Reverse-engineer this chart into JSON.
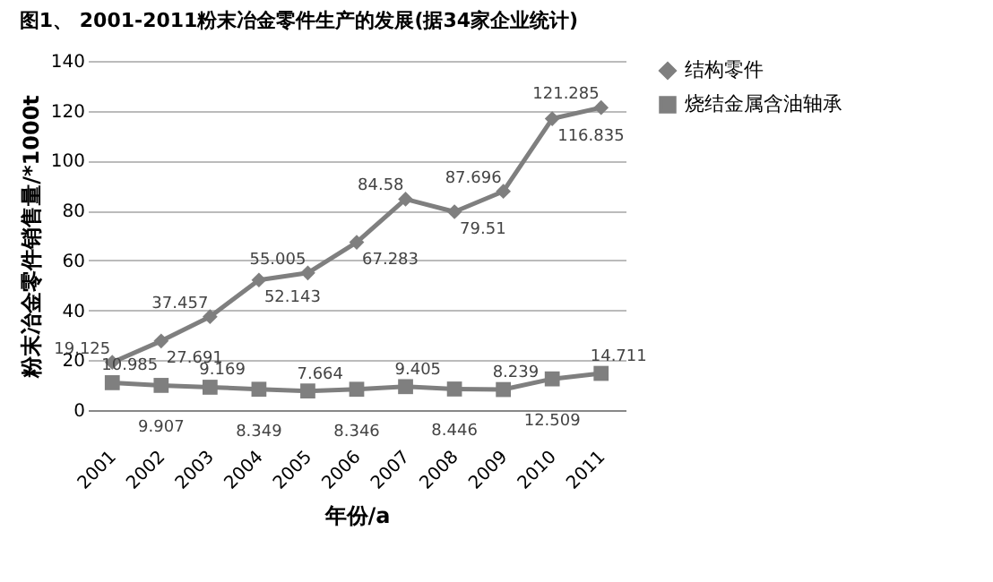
{
  "chart_data": {
    "type": "line",
    "title": "图1、 2001-2011粉末冶金零件生产的发展(据34家企业统计)",
    "xlabel": "年份/a",
    "ylabel": "粉末冶金零件销售量/*1000t",
    "categories": [
      "2001",
      "2002",
      "2003",
      "2004",
      "2005",
      "2006",
      "2007",
      "2008",
      "2009",
      "2010",
      "2011"
    ],
    "series": [
      {
        "name": "结构零件",
        "color": "#7f7f7f",
        "marker": "diamond",
        "values": [
          19.125,
          27.691,
          37.457,
          52.143,
          55.005,
          67.283,
          84.58,
          79.51,
          87.696,
          116.835,
          121.285
        ]
      },
      {
        "name": "烧结金属含油轴承",
        "color": "#7f7f7f",
        "marker": "square",
        "values": [
          10.985,
          9.907,
          9.169,
          8.349,
          7.664,
          8.346,
          9.405,
          8.446,
          8.239,
          12.509,
          14.711
        ]
      }
    ],
    "ylim": [
      0,
      140
    ],
    "yticks": [
      0,
      20,
      40,
      60,
      80,
      100,
      120,
      140
    ],
    "grid": "y",
    "legend": "right",
    "data_labels": true
  }
}
